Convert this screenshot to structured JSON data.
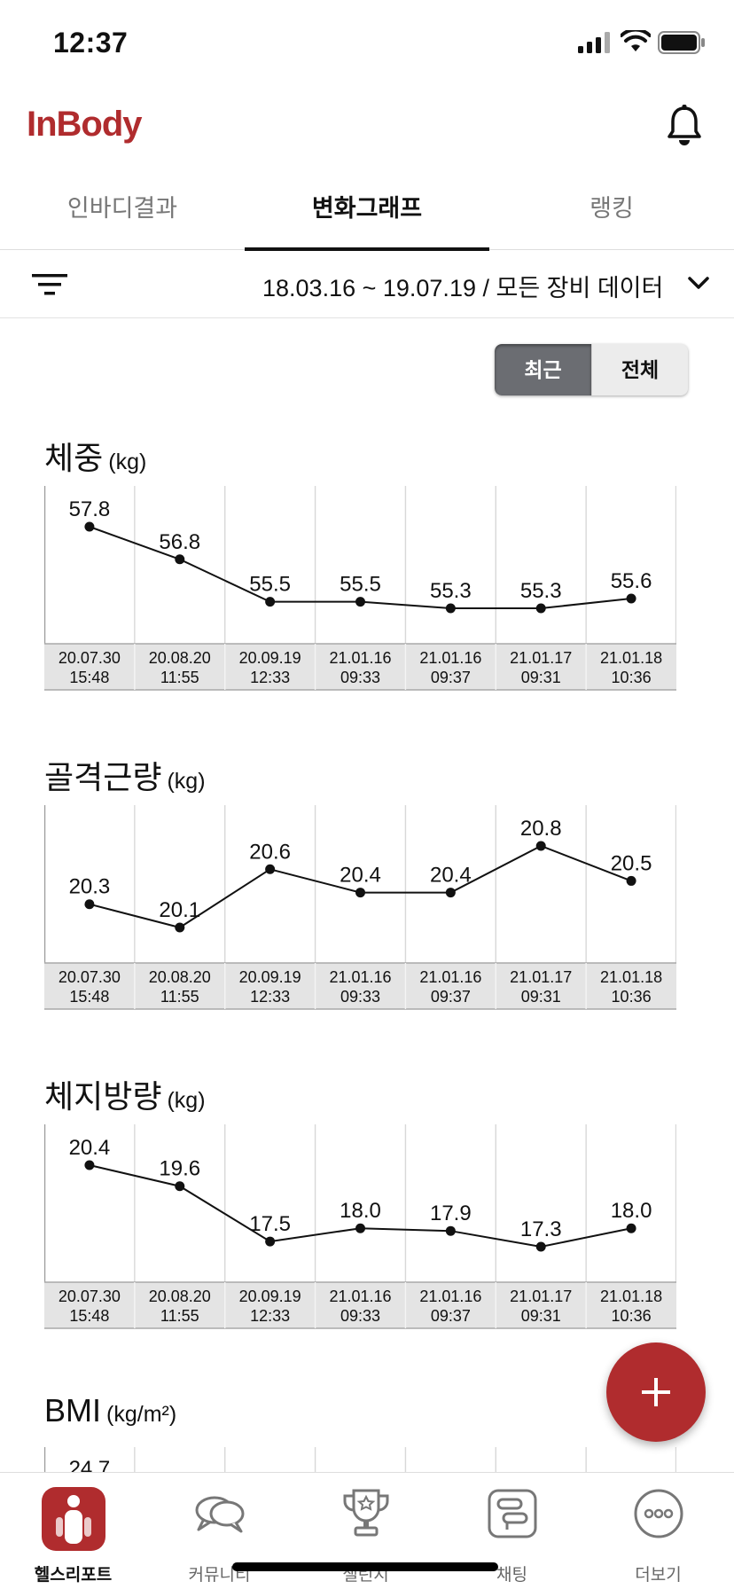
{
  "status_bar": {
    "time": "12:37"
  },
  "header": {
    "logo": "InBody",
    "brand_color": "#b02c2e"
  },
  "tabs": [
    {
      "label": "인바디결과",
      "active": false
    },
    {
      "label": "변화그래프",
      "active": true
    },
    {
      "label": "랭킹",
      "active": false
    }
  ],
  "filter": {
    "range_label": "18.03.16 ~ 19.07.19 / 모든 장비 데이터"
  },
  "toggle": {
    "recent_label": "최근",
    "all_label": "전체",
    "selected": "최근"
  },
  "chart_data": [
    {
      "type": "line",
      "title": "체중",
      "unit": "(kg)",
      "x": [
        "20.07.30 15:48",
        "20.08.20 11:55",
        "20.09.19 12:33",
        "21.01.16 09:33",
        "21.01.16 09:37",
        "21.01.17 09:31",
        "21.01.18 10:36"
      ],
      "x_dates": [
        "20.07.30",
        "20.08.20",
        "20.09.19",
        "21.01.16",
        "21.01.16",
        "21.01.17",
        "21.01.18"
      ],
      "x_times": [
        "15:48",
        "11:55",
        "12:33",
        "09:33",
        "09:37",
        "09:31",
        "10:36"
      ],
      "values": [
        57.8,
        56.8,
        55.5,
        55.5,
        55.3,
        55.3,
        55.6
      ],
      "labels": [
        "57.8",
        "56.8",
        "55.5",
        "55.5",
        "55.3",
        "55.3",
        "55.6"
      ],
      "grid": true
    },
    {
      "type": "line",
      "title": "골격근량",
      "unit": "(kg)",
      "x": [
        "20.07.30 15:48",
        "20.08.20 11:55",
        "20.09.19 12:33",
        "21.01.16 09:33",
        "21.01.16 09:37",
        "21.01.17 09:31",
        "21.01.18 10:36"
      ],
      "x_dates": [
        "20.07.30",
        "20.08.20",
        "20.09.19",
        "21.01.16",
        "21.01.16",
        "21.01.17",
        "21.01.18"
      ],
      "x_times": [
        "15:48",
        "11:55",
        "12:33",
        "09:33",
        "09:37",
        "09:31",
        "10:36"
      ],
      "values": [
        20.3,
        20.1,
        20.6,
        20.4,
        20.4,
        20.8,
        20.5
      ],
      "labels": [
        "20.3",
        "20.1",
        "20.6",
        "20.4",
        "20.4",
        "20.8",
        "20.5"
      ],
      "grid": true
    },
    {
      "type": "line",
      "title": "체지방량",
      "unit": "(kg)",
      "x": [
        "20.07.30 15:48",
        "20.08.20 11:55",
        "20.09.19 12:33",
        "21.01.16 09:33",
        "21.01.16 09:37",
        "21.01.17 09:31",
        "21.01.18 10:36"
      ],
      "x_dates": [
        "20.07.30",
        "20.08.20",
        "20.09.19",
        "21.01.16",
        "21.01.16",
        "21.01.17",
        "21.01.18"
      ],
      "x_times": [
        "15:48",
        "11:55",
        "12:33",
        "09:33",
        "09:37",
        "09:31",
        "10:36"
      ],
      "values": [
        20.4,
        19.6,
        17.5,
        18.0,
        17.9,
        17.3,
        18.0
      ],
      "labels": [
        "20.4",
        "19.6",
        "17.5",
        "18.0",
        "17.9",
        "17.3",
        "18.0"
      ],
      "grid": true
    },
    {
      "type": "line",
      "title": "BMI",
      "unit": "(kg/m²)",
      "x": [],
      "values": [
        24.7
      ],
      "labels": [
        "24.7"
      ],
      "grid": true,
      "partially_visible": true
    }
  ],
  "bottom_nav": [
    {
      "label": "헬스리포트",
      "icon": "health-report-icon",
      "active": true
    },
    {
      "label": "커뮤니티",
      "icon": "chat-bubbles-icon",
      "active": false
    },
    {
      "label": "챌린지",
      "icon": "trophy-icon",
      "active": false
    },
    {
      "label": "채팅",
      "icon": "chat-icon",
      "active": false
    },
    {
      "label": "더보기",
      "icon": "more-icon",
      "active": false
    }
  ]
}
